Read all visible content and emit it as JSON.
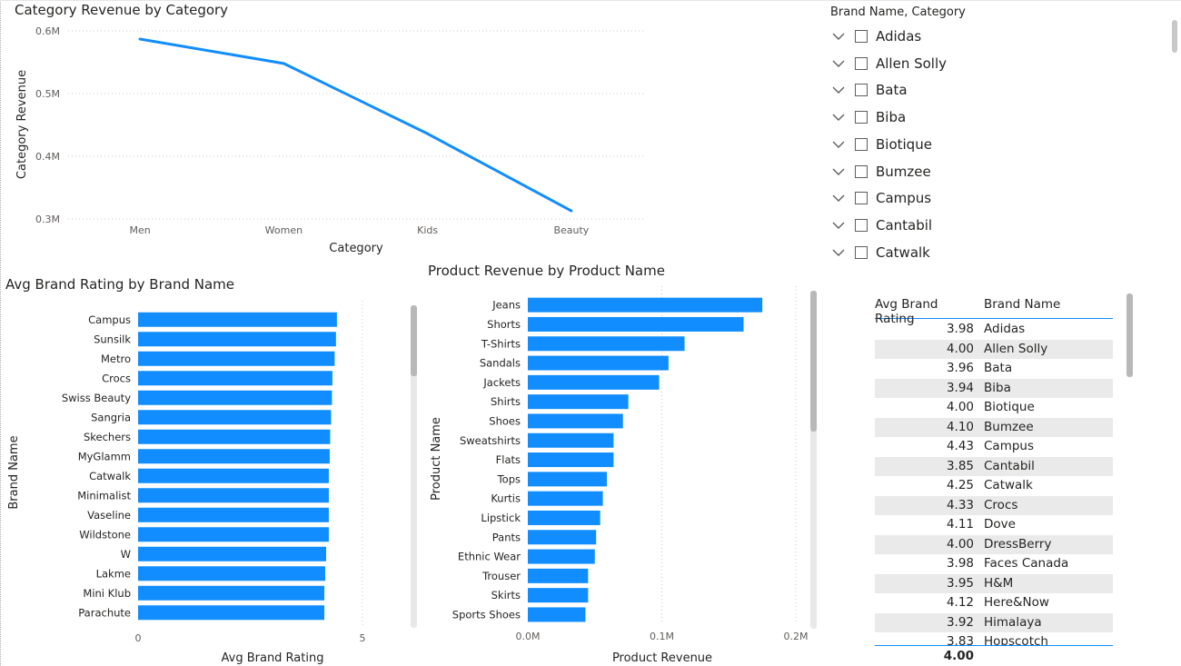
{
  "colors": {
    "accent": "#118dff",
    "gridline": "#c8c8c8",
    "axis_text": "#605e5c",
    "row_alt": "#eaeaea"
  },
  "line_chart": {
    "title": "Category Revenue by Category"
  },
  "bar_brand": {
    "title": "Avg Brand Rating by Brand Name"
  },
  "bar_product": {
    "title": "Product Revenue by Product Name"
  },
  "slicer": {
    "title": "Brand Name, Category",
    "expand_icon": "chevron-down-icon",
    "items": [
      "Adidas",
      "Allen Solly",
      "Bata",
      "Biba",
      "Biotique",
      "Bumzee",
      "Campus",
      "Cantabil",
      "Catwalk"
    ]
  },
  "table": {
    "headers": [
      "Avg Brand Rating",
      "Brand Name"
    ],
    "rows": [
      [
        "3.98",
        "Adidas"
      ],
      [
        "4.00",
        "Allen Solly"
      ],
      [
        "3.96",
        "Bata"
      ],
      [
        "3.94",
        "Biba"
      ],
      [
        "4.00",
        "Biotique"
      ],
      [
        "4.10",
        "Bumzee"
      ],
      [
        "4.43",
        "Campus"
      ],
      [
        "3.85",
        "Cantabil"
      ],
      [
        "4.25",
        "Catwalk"
      ],
      [
        "4.33",
        "Crocs"
      ],
      [
        "4.11",
        "Dove"
      ],
      [
        "4.00",
        "DressBerry"
      ],
      [
        "3.98",
        "Faces Canada"
      ],
      [
        "3.95",
        "H&M"
      ],
      [
        "4.12",
        "Here&Now"
      ],
      [
        "3.92",
        "Himalaya"
      ],
      [
        "3.83",
        "Hopscotch"
      ]
    ],
    "total": "4.00"
  },
  "chart_data": [
    {
      "type": "line",
      "title": "Category Revenue by Category",
      "xlabel": "Category",
      "ylabel": "Category Revenue",
      "categories": [
        "Men",
        "Women",
        "Kids",
        "Beauty"
      ],
      "values": [
        587000,
        548000,
        436000,
        313000
      ],
      "ylim": [
        300000,
        600000
      ],
      "yticks": [
        300000,
        400000,
        500000,
        600000
      ],
      "ytick_labels": [
        "0.3M",
        "0.4M",
        "0.5M",
        "0.6M"
      ],
      "grid": true
    },
    {
      "type": "bar",
      "orientation": "horizontal",
      "title": "Avg Brand Rating by Brand Name",
      "xlabel": "Avg Brand Rating",
      "ylabel": "Brand Name",
      "categories": [
        "Campus",
        "Sunsilk",
        "Metro",
        "Crocs",
        "Swiss Beauty",
        "Sangria",
        "Skechers",
        "MyGlamm",
        "Catwalk",
        "Minimalist",
        "Vaseline",
        "Wildstone",
        "W",
        "Lakme",
        "Mini Klub",
        "Parachute"
      ],
      "values": [
        4.43,
        4.41,
        4.38,
        4.33,
        4.32,
        4.3,
        4.28,
        4.27,
        4.25,
        4.25,
        4.25,
        4.25,
        4.19,
        4.17,
        4.15,
        4.15
      ],
      "xlim": [
        0,
        5
      ],
      "xticks": [
        0,
        5
      ],
      "xtick_labels": [
        "0",
        "5"
      ],
      "grid": true
    },
    {
      "type": "bar",
      "orientation": "horizontal",
      "title": "Product Revenue by Product Name",
      "xlabel": "Product Revenue",
      "ylabel": "Product Name",
      "categories": [
        "Jeans",
        "Shorts",
        "T-Shirts",
        "Sandals",
        "Jackets",
        "Shirts",
        "Shoes",
        "Sweatshirts",
        "Flats",
        "Tops",
        "Kurtis",
        "Lipstick",
        "Pants",
        "Ethnic Wear",
        "Trouser",
        "Skirts",
        "Sports Shoes"
      ],
      "values": [
        175000,
        161000,
        117000,
        105000,
        98000,
        75000,
        71000,
        64000,
        64000,
        59000,
        56000,
        54000,
        51000,
        50000,
        45000,
        45000,
        43000
      ],
      "xlim": [
        0,
        200000
      ],
      "xticks": [
        0,
        100000,
        200000
      ],
      "xtick_labels": [
        "0.0M",
        "0.1M",
        "0.2M"
      ],
      "grid": true
    }
  ]
}
